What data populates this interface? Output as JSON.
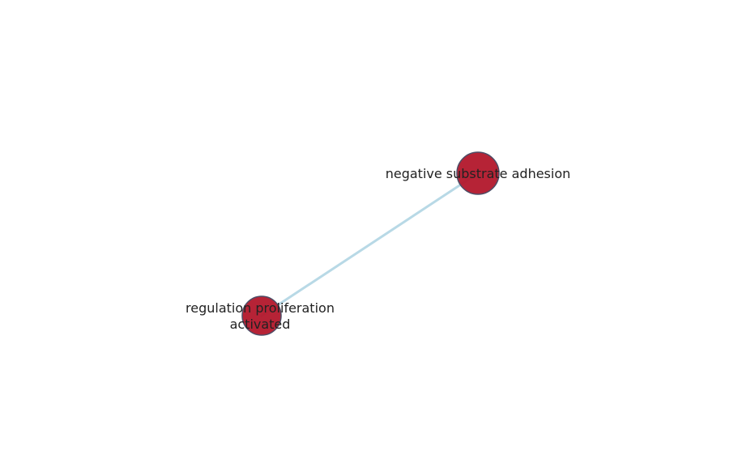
{
  "graph": {
    "nodes": [
      {
        "id": "node-1",
        "label_lines": [
          "negative substrate adhesion"
        ]
      },
      {
        "id": "node-2",
        "label_lines": [
          "regulation proliferation",
          "activated"
        ]
      }
    ],
    "edges": [
      {
        "source": "node-2",
        "target": "node-1"
      }
    ]
  },
  "colors": {
    "node_fill": "#b2172b",
    "node_stroke": "#4d4d66",
    "edge": "#a6cfe0",
    "label": "#222222",
    "background": "#ffffff"
  }
}
